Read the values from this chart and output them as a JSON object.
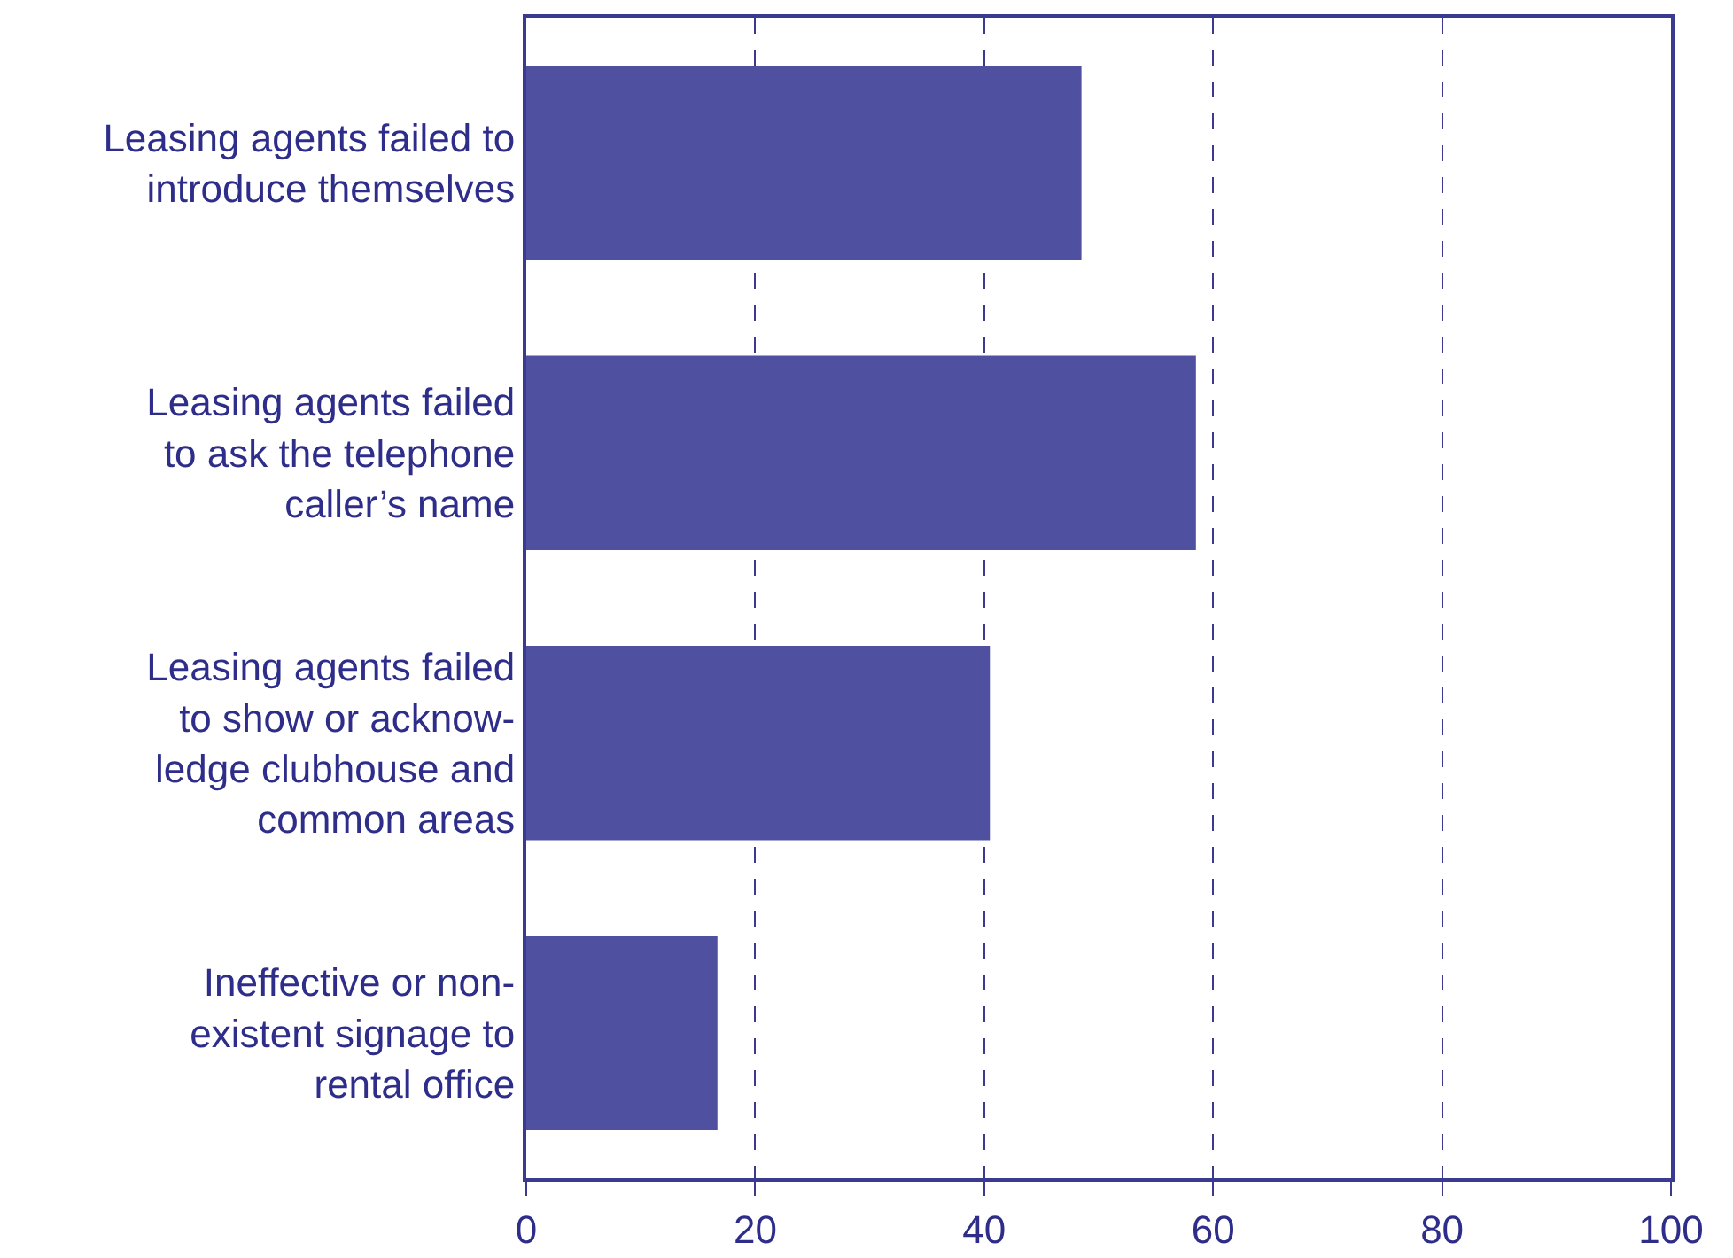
{
  "chart_data": {
    "type": "bar",
    "orientation": "horizontal",
    "categories": [
      "Leasing agents failed to\nintroduce themselves",
      "Leasing agents failed\nto ask the telephone\ncaller’s name",
      "Leasing agents failed\nto show or acknow-\nledge clubhouse and\ncommon areas",
      "Ineffective or non-\nexistent signage to\nrental office"
    ],
    "values": [
      48.5,
      58.5,
      40.5,
      16.7
    ],
    "color": "#5050a0",
    "xlim": [
      0,
      100
    ],
    "xticks": [
      0,
      20,
      40,
      60,
      80,
      100
    ],
    "grid": "x",
    "line_style": "dashed"
  }
}
